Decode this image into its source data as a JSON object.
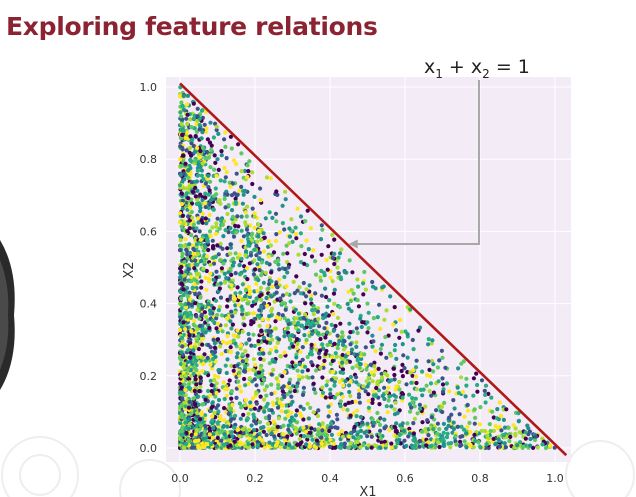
{
  "slide": {
    "title": "Exploring feature relations"
  },
  "annotation": {
    "lhs_a": "x",
    "sub_a": "1",
    "plus": " + ",
    "lhs_b": "x",
    "sub_b": "2",
    "rhs": " = 1"
  },
  "colors": {
    "title": "#8b2332",
    "boundary_line": "#b01818",
    "plot_bg": "#f3ebf5",
    "arrow": "#a8a8a8",
    "palette": [
      "#440154",
      "#3b528b",
      "#21918c",
      "#27ad81",
      "#5ec962",
      "#aadc32",
      "#fde725"
    ]
  },
  "icons": [
    "presenter-silhouette",
    "gear-watermark"
  ],
  "chart_data": {
    "type": "scatter",
    "title": "",
    "xlabel": "X1",
    "ylabel": "X2",
    "xlim": [
      -0.03,
      1.05
    ],
    "ylim": [
      -0.02,
      1.02
    ],
    "xticks": [
      "0.0",
      "0.2",
      "0.4",
      "0.6",
      "0.8",
      "1.0"
    ],
    "yticks": [
      "0.0",
      "0.2",
      "0.4",
      "0.6",
      "0.8",
      "1.0"
    ],
    "grid": true,
    "legend": "none",
    "colormap": "viridis",
    "constraint": "x1 + x2 <= 1",
    "boundary_line": {
      "x": [
        0,
        1.03
      ],
      "y": [
        1.01,
        -0.02
      ]
    },
    "density": "points concentrated near the origin and along both axes, sparse near the line x1 + x2 = 1",
    "points": [
      {
        "x": 0.42,
        "y": 0.5
      },
      {
        "x": 0.43,
        "y": 0.55
      },
      {
        "x": 0.47,
        "y": 0.28
      },
      {
        "x": 0.05,
        "y": 0.92
      },
      {
        "x": 0.1,
        "y": 0.8
      },
      {
        "x": 0.55,
        "y": 0.25
      },
      {
        "x": 0.3,
        "y": 0.6
      },
      {
        "x": 0.62,
        "y": 0.2
      },
      {
        "x": 0.75,
        "y": 0.15
      },
      {
        "x": 0.85,
        "y": 0.08
      },
      {
        "x": 0.2,
        "y": 0.4
      },
      {
        "x": 0.35,
        "y": 0.35
      },
      {
        "x": 0.15,
        "y": 0.2
      },
      {
        "x": 0.25,
        "y": 0.12
      },
      {
        "x": 0.4,
        "y": 0.1
      },
      {
        "x": 0.6,
        "y": 0.05
      },
      {
        "x": 0.08,
        "y": 0.6
      },
      {
        "x": 0.12,
        "y": 0.7
      },
      {
        "x": 0.5,
        "y": 0.4
      },
      {
        "x": 0.7,
        "y": 0.25
      }
    ]
  }
}
